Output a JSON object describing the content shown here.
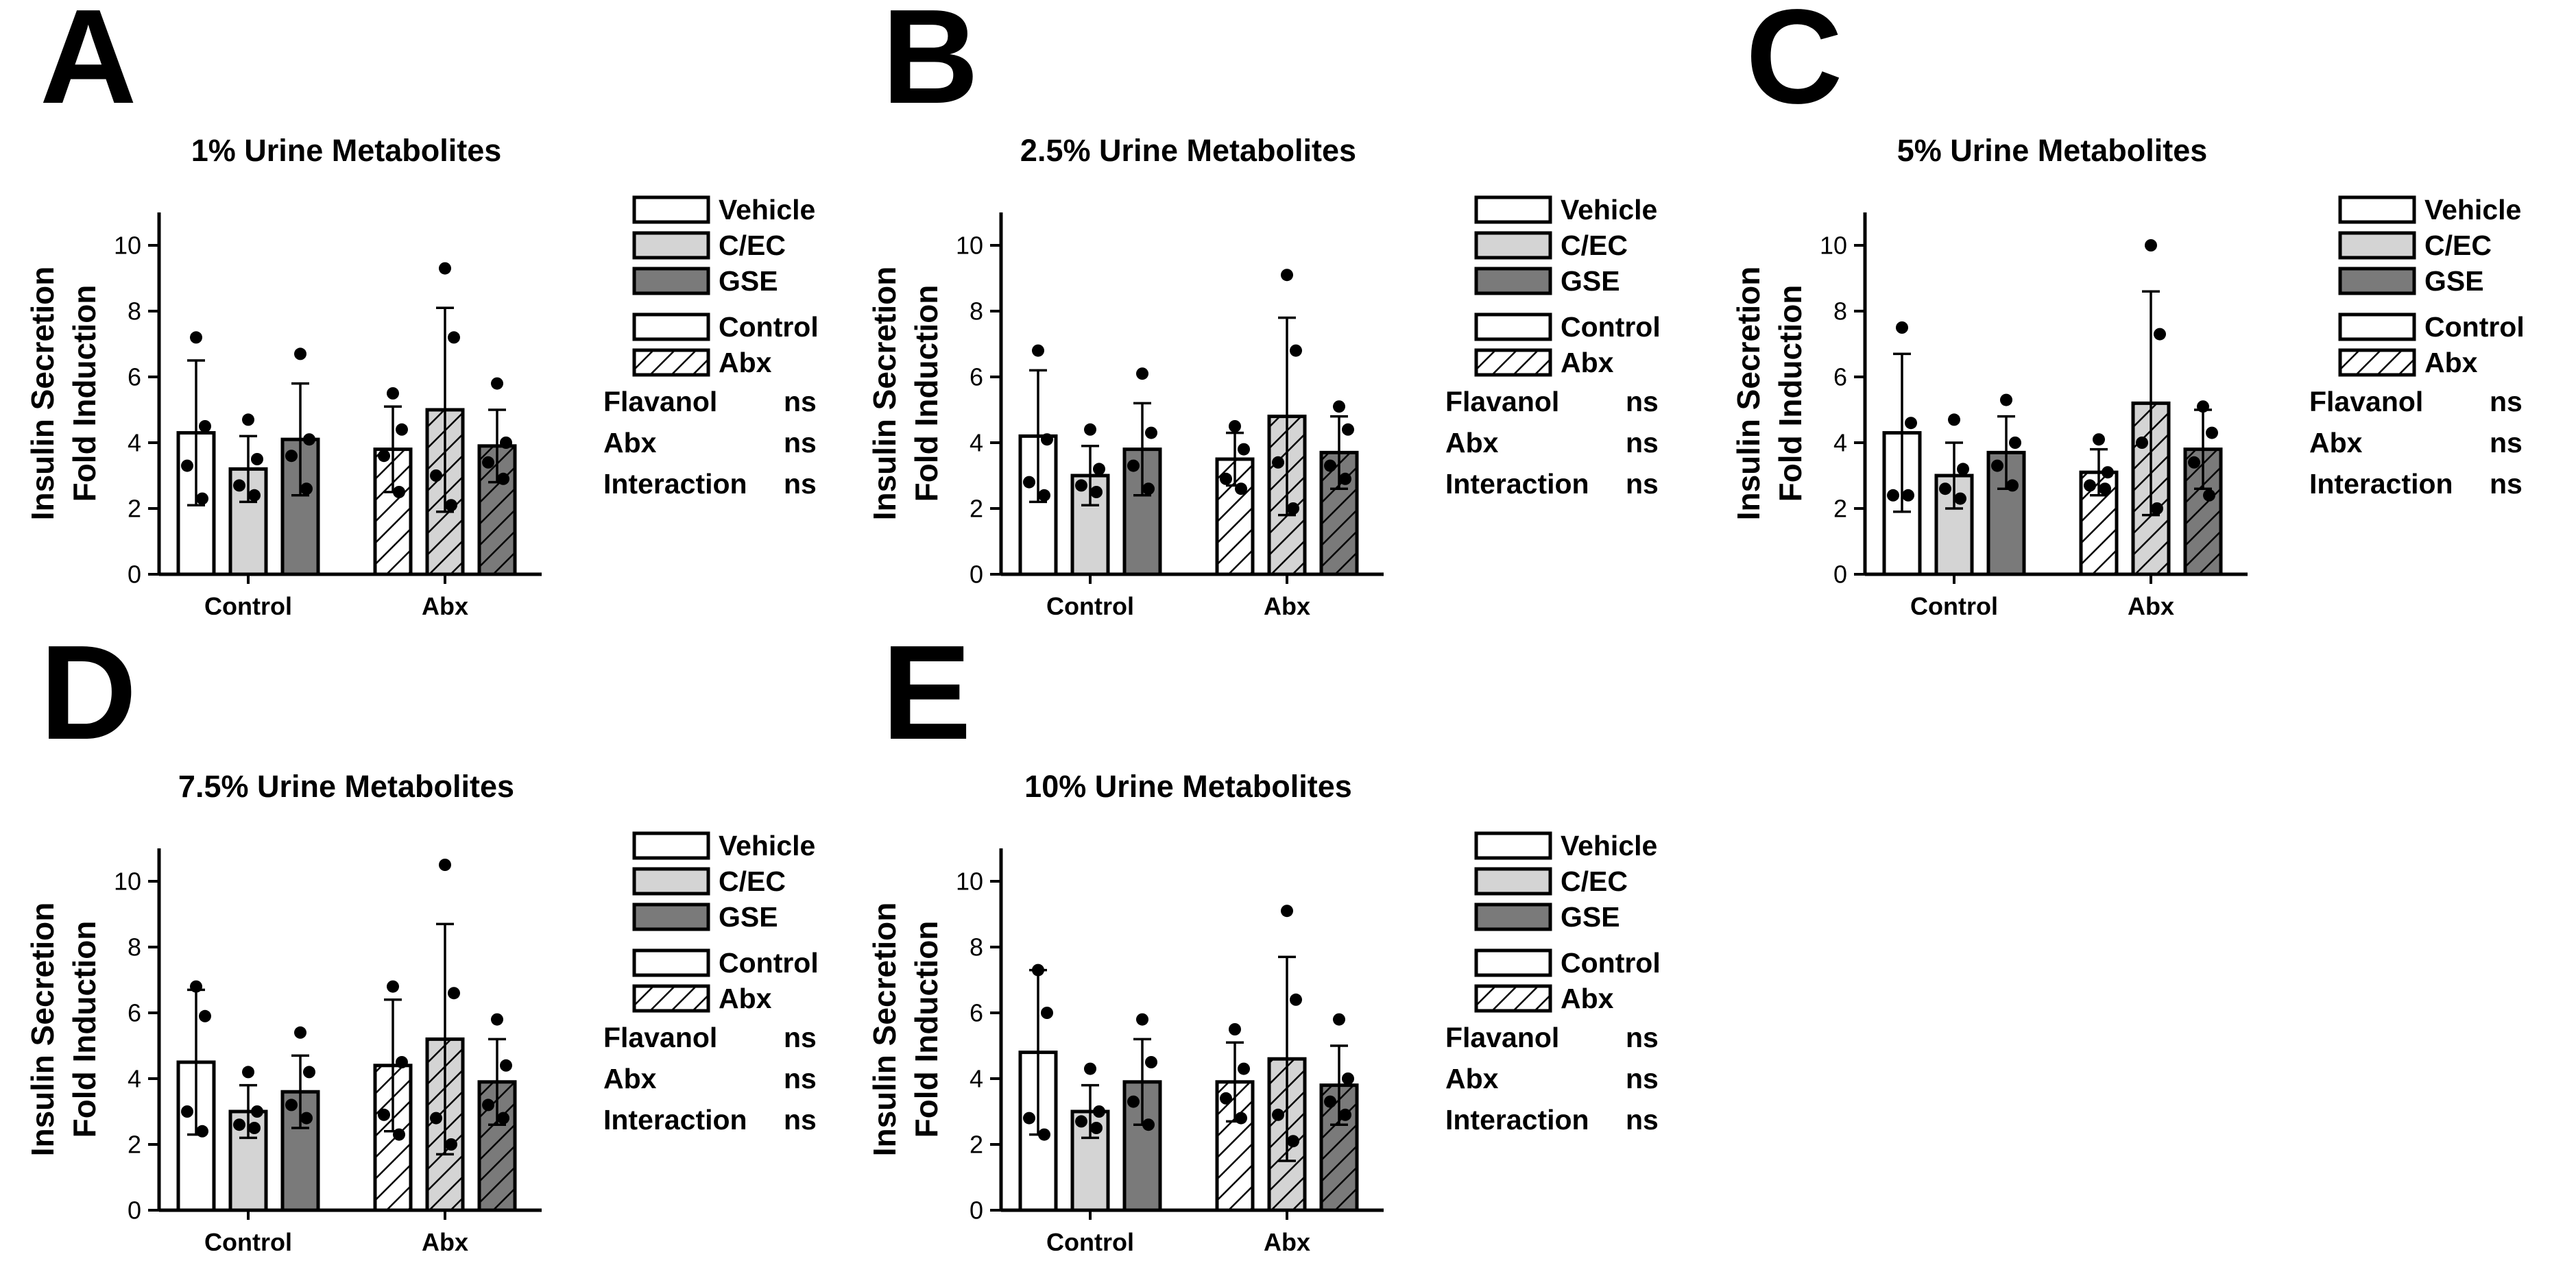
{
  "figure": {
    "legend": {
      "treatments": [
        "Vehicle",
        "C/EC",
        "GSE"
      ],
      "groups": [
        "Control",
        "Abx"
      ]
    },
    "fill_colors": [
      "#ffffff",
      "#d4d4d4",
      "#7a7a7a"
    ]
  },
  "chart_data": [
    {
      "letter": "A",
      "type": "bar",
      "title": "1% Urine Metabolites",
      "ylabel": [
        "Insulin Secretion",
        "Fold Induction"
      ],
      "ylim": [
        0,
        11
      ],
      "yticks": [
        0,
        2,
        4,
        6,
        8,
        10
      ],
      "categories": [
        "Control",
        "Abx"
      ],
      "series": [
        {
          "name": "Vehicle",
          "values": [
            4.3,
            3.8
          ],
          "errors": [
            2.2,
            1.3
          ],
          "points": [
            [
              7.2,
              4.5,
              3.3,
              2.3
            ],
            [
              5.5,
              4.4,
              3.6,
              2.5
            ]
          ]
        },
        {
          "name": "C/EC",
          "values": [
            3.2,
            5.0
          ],
          "errors": [
            1.0,
            3.1
          ],
          "points": [
            [
              4.7,
              3.5,
              2.7,
              2.4
            ],
            [
              9.3,
              7.2,
              3.0,
              2.1
            ]
          ]
        },
        {
          "name": "GSE",
          "values": [
            4.1,
            3.9
          ],
          "errors": [
            1.7,
            1.1
          ],
          "points": [
            [
              6.7,
              4.1,
              3.6,
              2.6
            ],
            [
              5.8,
              4.0,
              3.4,
              2.9
            ]
          ]
        }
      ],
      "stats": [
        {
          "label": "Flavanol",
          "value": "ns"
        },
        {
          "label": "Abx",
          "value": "ns"
        },
        {
          "label": "Interaction",
          "value": "ns"
        }
      ]
    },
    {
      "letter": "B",
      "type": "bar",
      "title": "2.5% Urine Metabolites",
      "ylabel": [
        "Insulin Secretion",
        "Fold Induction"
      ],
      "ylim": [
        0,
        11
      ],
      "yticks": [
        0,
        2,
        4,
        6,
        8,
        10
      ],
      "categories": [
        "Control",
        "Abx"
      ],
      "series": [
        {
          "name": "Vehicle",
          "values": [
            4.2,
            3.5
          ],
          "errors": [
            2.0,
            0.8
          ],
          "points": [
            [
              6.8,
              4.1,
              2.8,
              2.4
            ],
            [
              4.5,
              3.8,
              2.9,
              2.6
            ]
          ]
        },
        {
          "name": "C/EC",
          "values": [
            3.0,
            4.8
          ],
          "errors": [
            0.9,
            3.0
          ],
          "points": [
            [
              4.4,
              3.2,
              2.7,
              2.5
            ],
            [
              9.1,
              6.8,
              3.4,
              2.0
            ]
          ]
        },
        {
          "name": "GSE",
          "values": [
            3.8,
            3.7
          ],
          "errors": [
            1.4,
            1.1
          ],
          "points": [
            [
              6.1,
              4.3,
              3.3,
              2.6
            ],
            [
              5.1,
              4.4,
              3.3,
              2.9
            ]
          ]
        }
      ],
      "stats": [
        {
          "label": "Flavanol",
          "value": "ns"
        },
        {
          "label": "Abx",
          "value": "ns"
        },
        {
          "label": "Interaction",
          "value": "ns"
        }
      ]
    },
    {
      "letter": "C",
      "type": "bar",
      "title": "5% Urine Metabolites",
      "ylabel": [
        "Insulin Secretion",
        "Fold Induction"
      ],
      "ylim": [
        0,
        11
      ],
      "yticks": [
        0,
        2,
        4,
        6,
        8,
        10
      ],
      "categories": [
        "Control",
        "Abx"
      ],
      "series": [
        {
          "name": "Vehicle",
          "values": [
            4.3,
            3.1
          ],
          "errors": [
            2.4,
            0.7
          ],
          "points": [
            [
              7.5,
              4.6,
              2.4,
              2.4
            ],
            [
              4.1,
              3.1,
              2.7,
              2.6
            ]
          ]
        },
        {
          "name": "C/EC",
          "values": [
            3.0,
            5.2
          ],
          "errors": [
            1.0,
            3.4
          ],
          "points": [
            [
              4.7,
              3.2,
              2.6,
              2.3
            ],
            [
              10.0,
              7.3,
              4.0,
              2.0
            ]
          ]
        },
        {
          "name": "GSE",
          "values": [
            3.7,
            3.8
          ],
          "errors": [
            1.1,
            1.2
          ],
          "points": [
            [
              5.3,
              4.0,
              3.3,
              2.7
            ],
            [
              5.1,
              4.3,
              3.4,
              2.4
            ]
          ]
        }
      ],
      "stats": [
        {
          "label": "Flavanol",
          "value": "ns"
        },
        {
          "label": "Abx",
          "value": "ns"
        },
        {
          "label": "Interaction",
          "value": "ns"
        }
      ]
    },
    {
      "letter": "D",
      "type": "bar",
      "title": "7.5% Urine Metabolites",
      "ylabel": [
        "Insulin Secretion",
        "Fold Induction"
      ],
      "ylim": [
        0,
        11
      ],
      "yticks": [
        0,
        2,
        4,
        6,
        8,
        10
      ],
      "categories": [
        "Control",
        "Abx"
      ],
      "series": [
        {
          "name": "Vehicle",
          "values": [
            4.5,
            4.4
          ],
          "errors": [
            2.2,
            2.0
          ],
          "points": [
            [
              6.8,
              5.9,
              3.0,
              2.4
            ],
            [
              6.8,
              4.5,
              2.9,
              2.3
            ]
          ]
        },
        {
          "name": "C/EC",
          "values": [
            3.0,
            5.2
          ],
          "errors": [
            0.8,
            3.5
          ],
          "points": [
            [
              4.2,
              3.0,
              2.6,
              2.5
            ],
            [
              10.5,
              6.6,
              2.8,
              2.0
            ]
          ]
        },
        {
          "name": "GSE",
          "values": [
            3.6,
            3.9
          ],
          "errors": [
            1.1,
            1.3
          ],
          "points": [
            [
              5.4,
              4.2,
              3.2,
              2.8
            ],
            [
              5.8,
              4.4,
              3.2,
              2.8
            ]
          ]
        }
      ],
      "stats": [
        {
          "label": "Flavanol",
          "value": "ns"
        },
        {
          "label": "Abx",
          "value": "ns"
        },
        {
          "label": "Interaction",
          "value": "ns"
        }
      ]
    },
    {
      "letter": "E",
      "type": "bar",
      "title": "10% Urine Metabolites",
      "ylabel": [
        "Insulin Secretion",
        "Fold Induction"
      ],
      "ylim": [
        0,
        11
      ],
      "yticks": [
        0,
        2,
        4,
        6,
        8,
        10
      ],
      "categories": [
        "Control",
        "Abx"
      ],
      "series": [
        {
          "name": "Vehicle",
          "values": [
            4.8,
            3.9
          ],
          "errors": [
            2.5,
            1.2
          ],
          "points": [
            [
              7.3,
              6.0,
              2.8,
              2.3
            ],
            [
              5.5,
              4.3,
              3.4,
              2.8
            ]
          ]
        },
        {
          "name": "C/EC",
          "values": [
            3.0,
            4.6
          ],
          "errors": [
            0.8,
            3.1
          ],
          "points": [
            [
              4.3,
              3.0,
              2.7,
              2.5
            ],
            [
              9.1,
              6.4,
              2.9,
              2.1
            ]
          ]
        },
        {
          "name": "GSE",
          "values": [
            3.9,
            3.8
          ],
          "errors": [
            1.3,
            1.2
          ],
          "points": [
            [
              5.8,
              4.5,
              3.3,
              2.6
            ],
            [
              5.8,
              4.0,
              3.3,
              2.9
            ]
          ]
        }
      ],
      "stats": [
        {
          "label": "Flavanol",
          "value": "ns"
        },
        {
          "label": "Abx",
          "value": "ns"
        },
        {
          "label": "Interaction",
          "value": "ns"
        }
      ]
    }
  ]
}
